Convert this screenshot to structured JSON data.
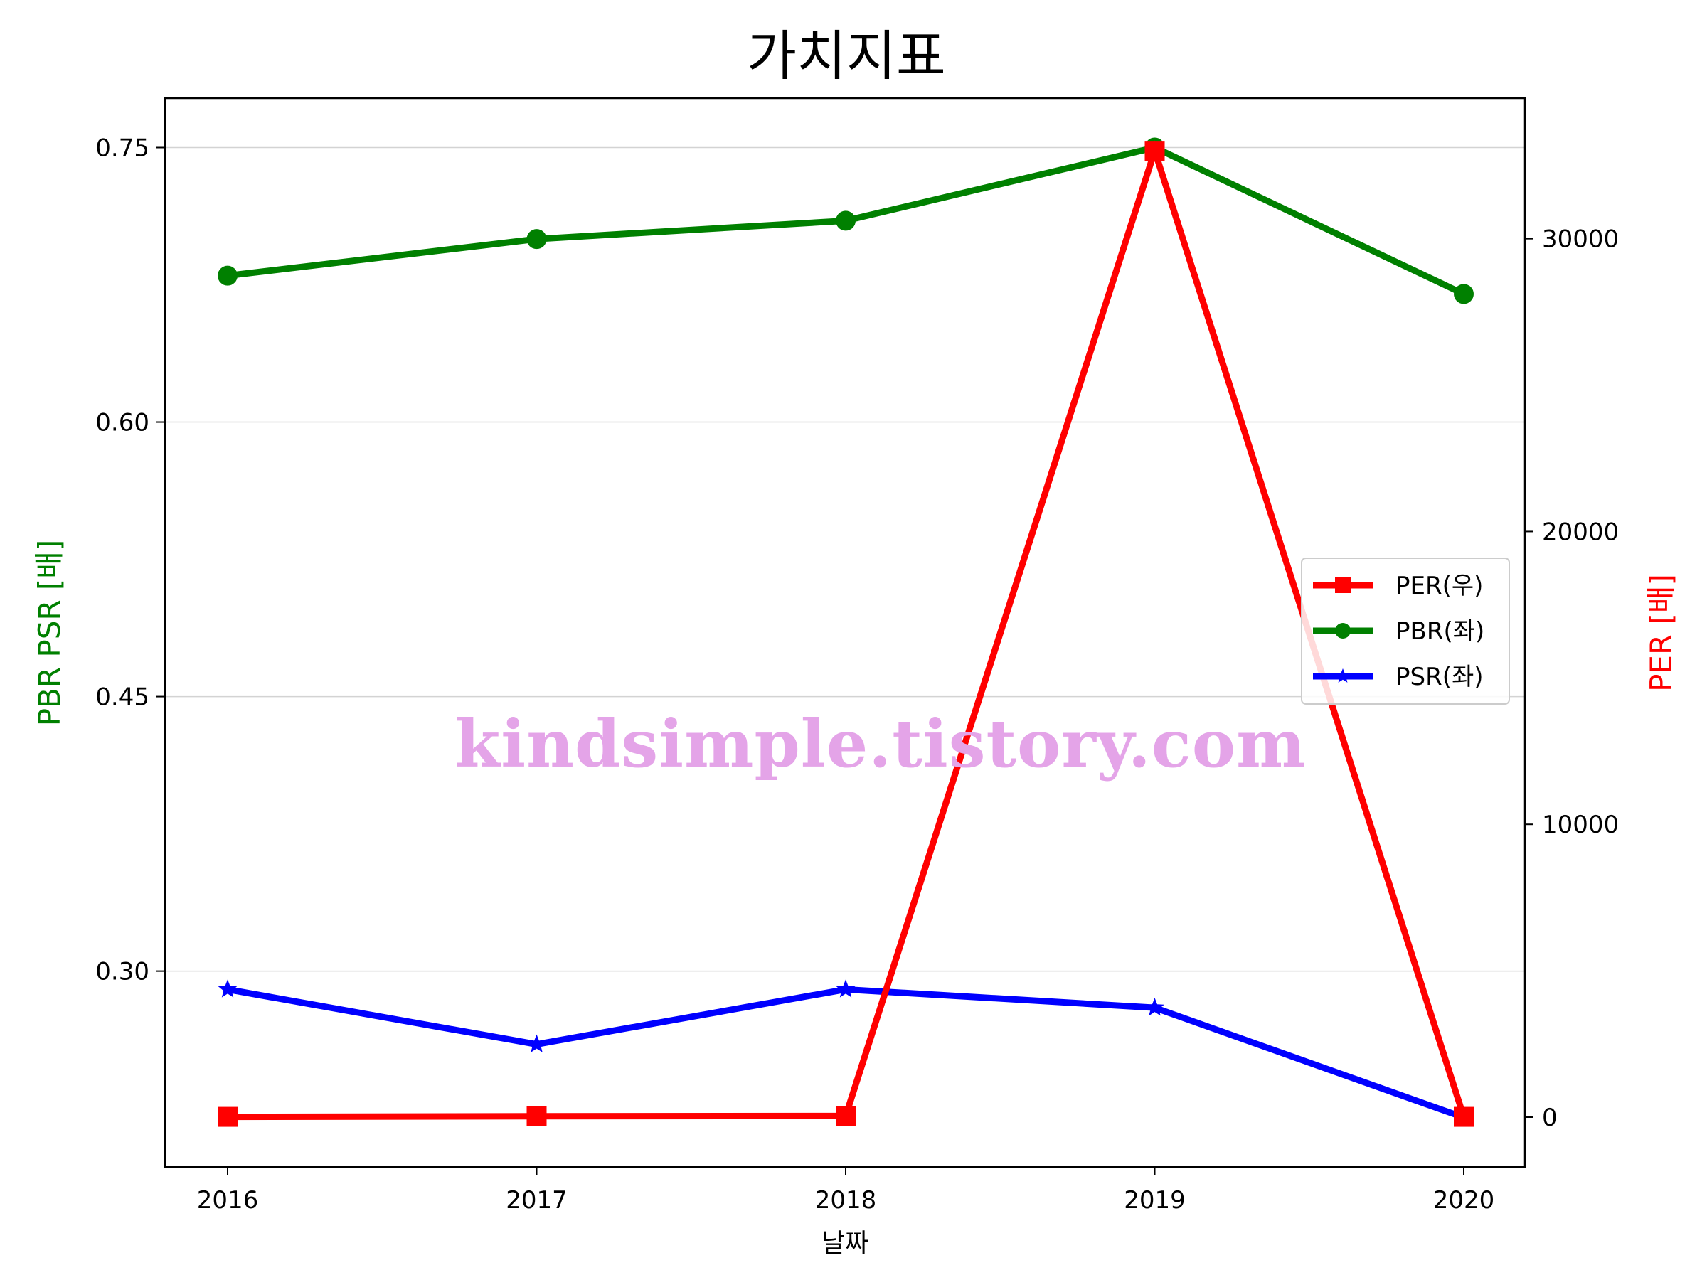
{
  "chart_data": {
    "type": "line",
    "title": "가치지표",
    "xlabel": "날짜",
    "ylabel_left": "PBR PSR [배]",
    "ylabel_right": "PER [배]",
    "categories": [
      "2016",
      "2017",
      "2018",
      "2019",
      "2020"
    ],
    "y_left": {
      "range": [
        0.193,
        0.777
      ],
      "ticks": [
        0.3,
        0.45,
        0.6,
        0.75
      ],
      "tick_labels": [
        "0.30",
        "0.45",
        "0.60",
        "0.75"
      ],
      "color": "#008000"
    },
    "y_right": {
      "range": [
        -1700,
        34800
      ],
      "ticks": [
        0,
        10000,
        20000,
        30000
      ],
      "tick_labels": [
        "0",
        "10000",
        "20000",
        "30000"
      ],
      "color": "#ff0000"
    },
    "grid": "horizontal",
    "legend_position": "center-right",
    "series": [
      {
        "name": "PER(우)",
        "axis": "right",
        "marker": "square",
        "color": "#ff0000",
        "values": [
          10,
          30,
          40,
          33000,
          10
        ]
      },
      {
        "name": "PBR(좌)",
        "axis": "left",
        "marker": "circle",
        "color": "#008000",
        "values": [
          0.68,
          0.7,
          0.71,
          0.75,
          0.67
        ]
      },
      {
        "name": "PSR(좌)",
        "axis": "left",
        "marker": "star",
        "color": "#0000ff",
        "values": [
          0.29,
          0.26,
          0.29,
          0.28,
          0.22
        ]
      }
    ],
    "watermark": {
      "text": "kindsimple.tistory.com",
      "color": "#e4a4e8"
    }
  }
}
